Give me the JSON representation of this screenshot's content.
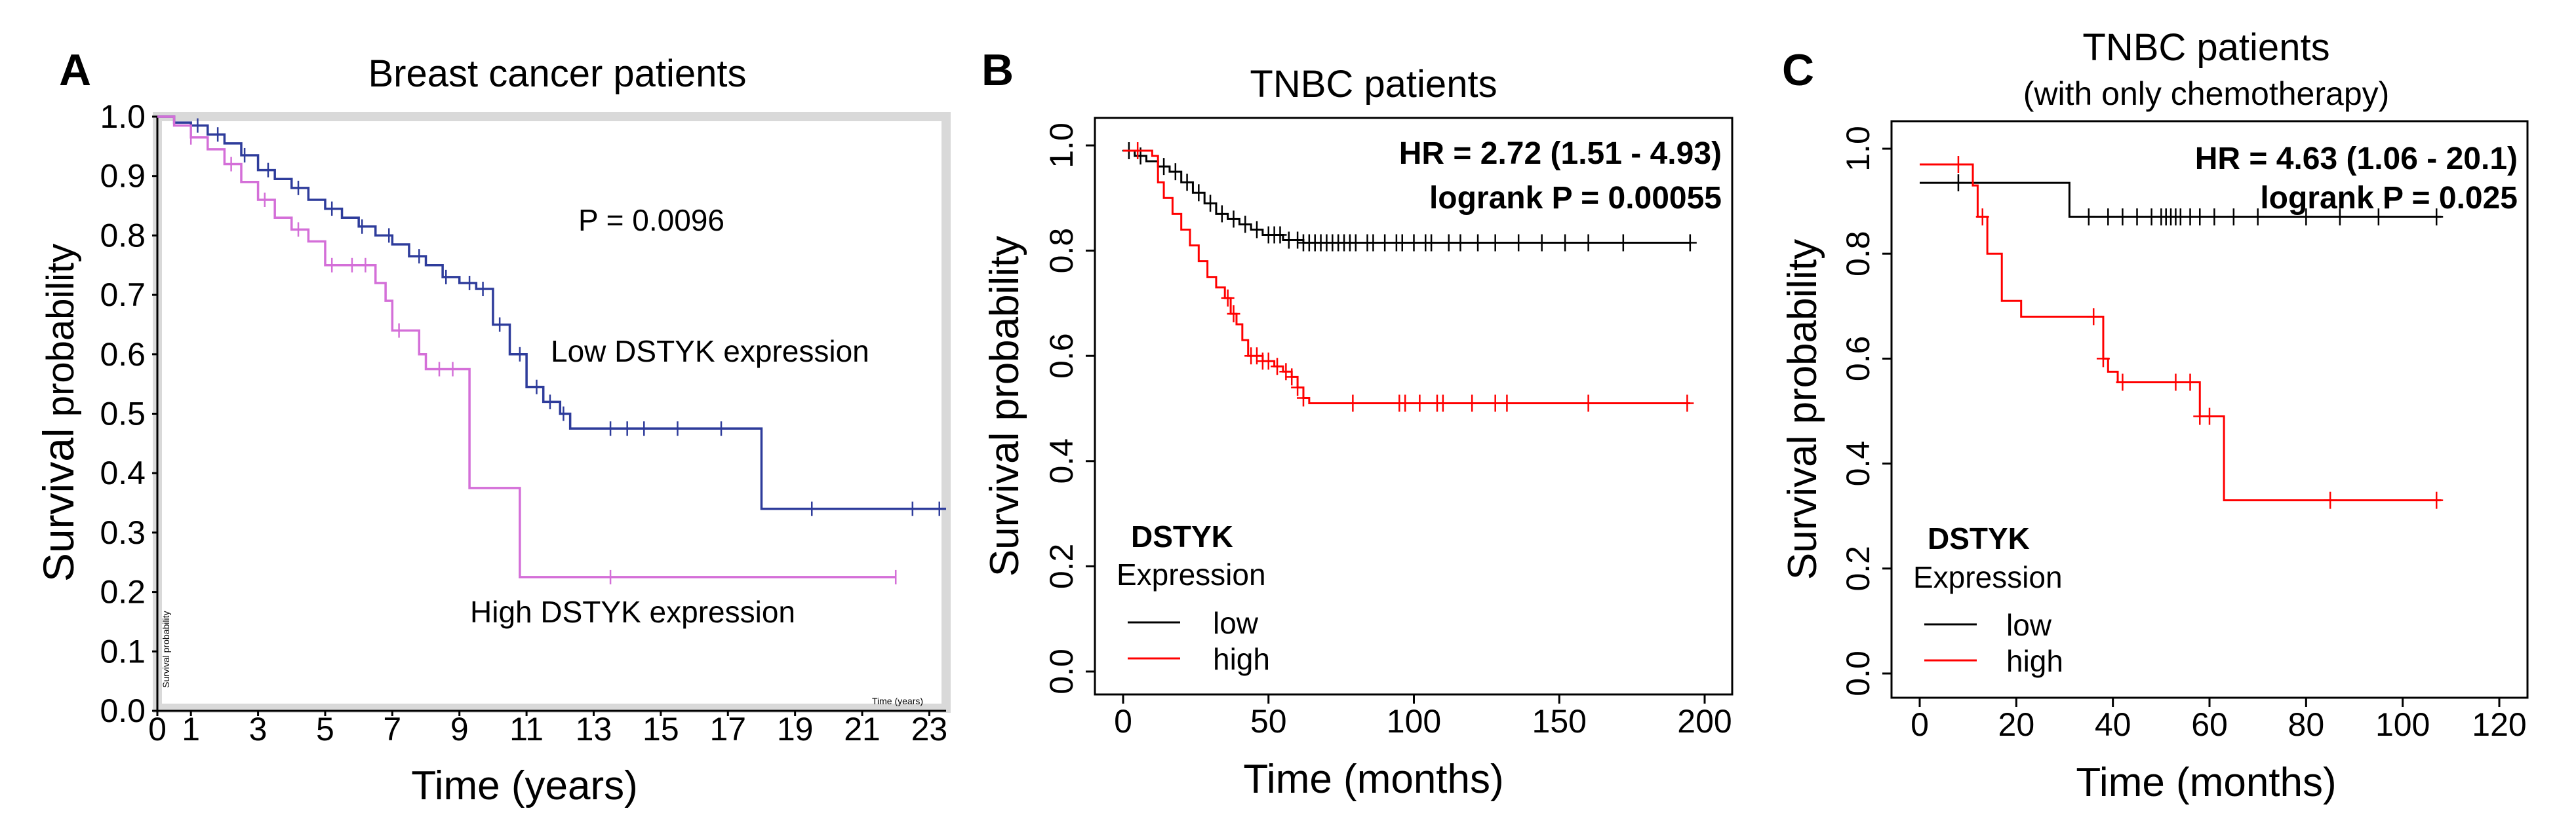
{
  "colors": {
    "low_a": "#2e3c9b",
    "high_a": "#d46fd8",
    "low_bc": "#000000",
    "high_bc": "#ff0000",
    "frame_a": "#d9d9d9"
  },
  "chart_data": [
    {
      "type": "line",
      "panel": "A",
      "title": "Breast cancer patients",
      "xlabel": "Time (years)",
      "ylabel_prefix": "Survival",
      "ylabel_suffix": "probability",
      "inner_ylabel": "Survival probability",
      "inner_xlabel": "Time (years)",
      "xlim": [
        0,
        23.5
      ],
      "ylim": [
        0,
        1.0
      ],
      "xticks": [
        0,
        1,
        3,
        5,
        7,
        9,
        11,
        13,
        15,
        17,
        19,
        21,
        23
      ],
      "yticks": [
        0.0,
        0.1,
        0.2,
        0.3,
        0.4,
        0.5,
        0.6,
        0.7,
        0.8,
        0.9,
        1.0
      ],
      "ytick_labels": [
        "0.0",
        "0.1",
        "0.2",
        "0.3",
        "0.4",
        "0.5",
        "0.6",
        "0.7",
        "0.8",
        "0.9",
        "1.0"
      ],
      "annotations": {
        "p_value": "P = 0.0096",
        "low_label": "Low DSTYK expression",
        "high_label": "High DSTYK expression"
      },
      "series": [
        {
          "name": "Low DSTYK expression",
          "color": "#2e3c9b",
          "steps": [
            [
              0,
              1.0
            ],
            [
              0.5,
              0.99
            ],
            [
              1.0,
              0.985
            ],
            [
              1.5,
              0.97
            ],
            [
              2.0,
              0.955
            ],
            [
              2.5,
              0.935
            ],
            [
              3.0,
              0.91
            ],
            [
              3.5,
              0.895
            ],
            [
              4.0,
              0.88
            ],
            [
              4.5,
              0.86
            ],
            [
              5.0,
              0.845
            ],
            [
              5.5,
              0.83
            ],
            [
              6.0,
              0.815
            ],
            [
              6.5,
              0.8
            ],
            [
              7.0,
              0.785
            ],
            [
              7.5,
              0.765
            ],
            [
              8.0,
              0.75
            ],
            [
              8.5,
              0.73
            ],
            [
              9.0,
              0.72
            ],
            [
              9.5,
              0.71
            ],
            [
              10.0,
              0.65
            ],
            [
              10.5,
              0.6
            ],
            [
              11.0,
              0.545
            ],
            [
              11.5,
              0.52
            ],
            [
              12.0,
              0.5
            ],
            [
              12.3,
              0.475
            ],
            [
              18.0,
              0.34
            ],
            [
              23.5,
              0.34
            ]
          ],
          "censors": [
            1.2,
            1.8,
            2.6,
            3.3,
            4.2,
            5.2,
            6.1,
            6.9,
            7.8,
            8.6,
            9.3,
            9.7,
            10.2,
            10.8,
            11.3,
            11.7,
            12.1,
            13.5,
            14.0,
            14.5,
            15.5,
            16.8,
            19.5,
            22.5,
            23.3
          ]
        },
        {
          "name": "High DSTYK expression",
          "color": "#d46fd8",
          "steps": [
            [
              0,
              1.0
            ],
            [
              0.5,
              0.985
            ],
            [
              1.0,
              0.965
            ],
            [
              1.5,
              0.945
            ],
            [
              2.0,
              0.92
            ],
            [
              2.5,
              0.89
            ],
            [
              3.0,
              0.86
            ],
            [
              3.5,
              0.83
            ],
            [
              4.0,
              0.81
            ],
            [
              4.5,
              0.79
            ],
            [
              5.0,
              0.75
            ],
            [
              6.5,
              0.72
            ],
            [
              6.8,
              0.69
            ],
            [
              7.0,
              0.64
            ],
            [
              7.8,
              0.6
            ],
            [
              8.0,
              0.575
            ],
            [
              9.0,
              0.575
            ],
            [
              9.3,
              0.375
            ],
            [
              10.5,
              0.375
            ],
            [
              10.8,
              0.225
            ],
            [
              22.0,
              0.225
            ]
          ],
          "censors": [
            1.0,
            2.2,
            3.2,
            4.2,
            5.2,
            5.8,
            6.2,
            7.2,
            8.4,
            8.8,
            13.5,
            22.0
          ]
        }
      ]
    },
    {
      "type": "line",
      "panel": "B",
      "title": "TNBC patients",
      "xlabel": "Time (months)",
      "ylabel": "Survival probability",
      "xlim": [
        0,
        200
      ],
      "ylim": [
        0,
        1.0
      ],
      "xticks": [
        0,
        50,
        100,
        150,
        200
      ],
      "yticks": [
        0.0,
        0.2,
        0.4,
        0.6,
        0.8,
        1.0
      ],
      "ytick_labels": [
        "0.0",
        "0.2",
        "0.4",
        "0.6",
        "0.8",
        "1.0"
      ],
      "annotations": {
        "hr": "HR = 2.72 (1.51 - 4.93)",
        "logrank": "logrank P = 0.00055"
      },
      "legend": {
        "title": "DSTYK",
        "subtitle": "Expression",
        "items": [
          "low",
          "high"
        ]
      },
      "series": [
        {
          "name": "low",
          "color": "#000000",
          "steps": [
            [
              0,
              0.99
            ],
            [
              4,
              0.98
            ],
            [
              8,
              0.97
            ],
            [
              12,
              0.96
            ],
            [
              16,
              0.95
            ],
            [
              20,
              0.93
            ],
            [
              24,
              0.91
            ],
            [
              28,
              0.89
            ],
            [
              32,
              0.87
            ],
            [
              36,
              0.86
            ],
            [
              40,
              0.85
            ],
            [
              44,
              0.84
            ],
            [
              48,
              0.83
            ],
            [
              55,
              0.82
            ],
            [
              62,
              0.815
            ],
            [
              195,
              0.815
            ]
          ],
          "censors": [
            2,
            6,
            14,
            18,
            22,
            26,
            30,
            34,
            38,
            42,
            46,
            50,
            52,
            54,
            57,
            60,
            62,
            64,
            66,
            68,
            70,
            72,
            74,
            76,
            78,
            80,
            84,
            86,
            90,
            94,
            96,
            100,
            104,
            106,
            112,
            116,
            122,
            128,
            136,
            144,
            152,
            160,
            172,
            195
          ]
        },
        {
          "name": "high",
          "color": "#ff0000",
          "steps": [
            [
              0,
              0.99
            ],
            [
              10,
              0.98
            ],
            [
              12,
              0.93
            ],
            [
              14,
              0.9
            ],
            [
              17,
              0.87
            ],
            [
              20,
              0.84
            ],
            [
              23,
              0.81
            ],
            [
              26,
              0.78
            ],
            [
              29,
              0.75
            ],
            [
              32,
              0.73
            ],
            [
              35,
              0.71
            ],
            [
              37,
              0.68
            ],
            [
              39,
              0.66
            ],
            [
              41,
              0.63
            ],
            [
              43,
              0.6
            ],
            [
              48,
              0.59
            ],
            [
              52,
              0.58
            ],
            [
              55,
              0.57
            ],
            [
              58,
              0.56
            ],
            [
              60,
              0.54
            ],
            [
              62,
              0.52
            ],
            [
              64,
              0.51
            ],
            [
              195,
              0.51
            ]
          ],
          "censors": [
            5,
            36,
            38,
            44,
            46,
            48,
            50,
            53,
            56,
            58,
            60,
            62,
            79,
            95,
            97,
            102,
            108,
            110,
            120,
            128,
            132,
            160,
            194
          ]
        }
      ]
    },
    {
      "type": "line",
      "panel": "C",
      "title": "TNBC patients",
      "subtitle": "(with only chemotherapy)",
      "xlabel": "Time (months)",
      "ylabel": "Survival probability",
      "xlim": [
        0,
        120
      ],
      "ylim": [
        0,
        1.0
      ],
      "xticks": [
        0,
        20,
        40,
        60,
        80,
        100,
        120
      ],
      "yticks": [
        0.0,
        0.2,
        0.4,
        0.6,
        0.8,
        1.0
      ],
      "ytick_labels": [
        "0.0",
        "0.2",
        "0.4",
        "0.6",
        "0.8",
        "1.0"
      ],
      "annotations": {
        "hr": "HR = 4.63 (1.06 - 20.1)",
        "logrank": "logrank P = 0.025"
      },
      "legend": {
        "title": "DSTYK",
        "subtitle": "Expression",
        "items": [
          "low",
          "high"
        ]
      },
      "series": [
        {
          "name": "low",
          "color": "#000000",
          "steps": [
            [
              0,
              0.935
            ],
            [
              30,
              0.935
            ],
            [
              31,
              0.87
            ],
            [
              108,
              0.87
            ]
          ],
          "censors": [
            8,
            35,
            39,
            42,
            45,
            48,
            50,
            51,
            52,
            53,
            54,
            56,
            58,
            61,
            65,
            70,
            80,
            87,
            95,
            107
          ]
        },
        {
          "name": "high",
          "color": "#ff0000",
          "steps": [
            [
              0,
              0.97
            ],
            [
              10,
              0.97
            ],
            [
              11,
              0.93
            ],
            [
              12,
              0.87
            ],
            [
              14,
              0.8
            ],
            [
              17,
              0.71
            ],
            [
              21,
              0.68
            ],
            [
              30,
              0.68
            ],
            [
              38,
              0.6
            ],
            [
              39,
              0.575
            ],
            [
              41,
              0.555
            ],
            [
              56,
              0.555
            ],
            [
              58,
              0.49
            ],
            [
              62,
              0.49
            ],
            [
              63,
              0.33
            ],
            [
              108,
              0.33
            ]
          ],
          "censors": [
            8,
            13,
            36,
            38,
            42,
            53,
            56,
            58,
            60,
            85,
            107
          ]
        }
      ]
    }
  ]
}
